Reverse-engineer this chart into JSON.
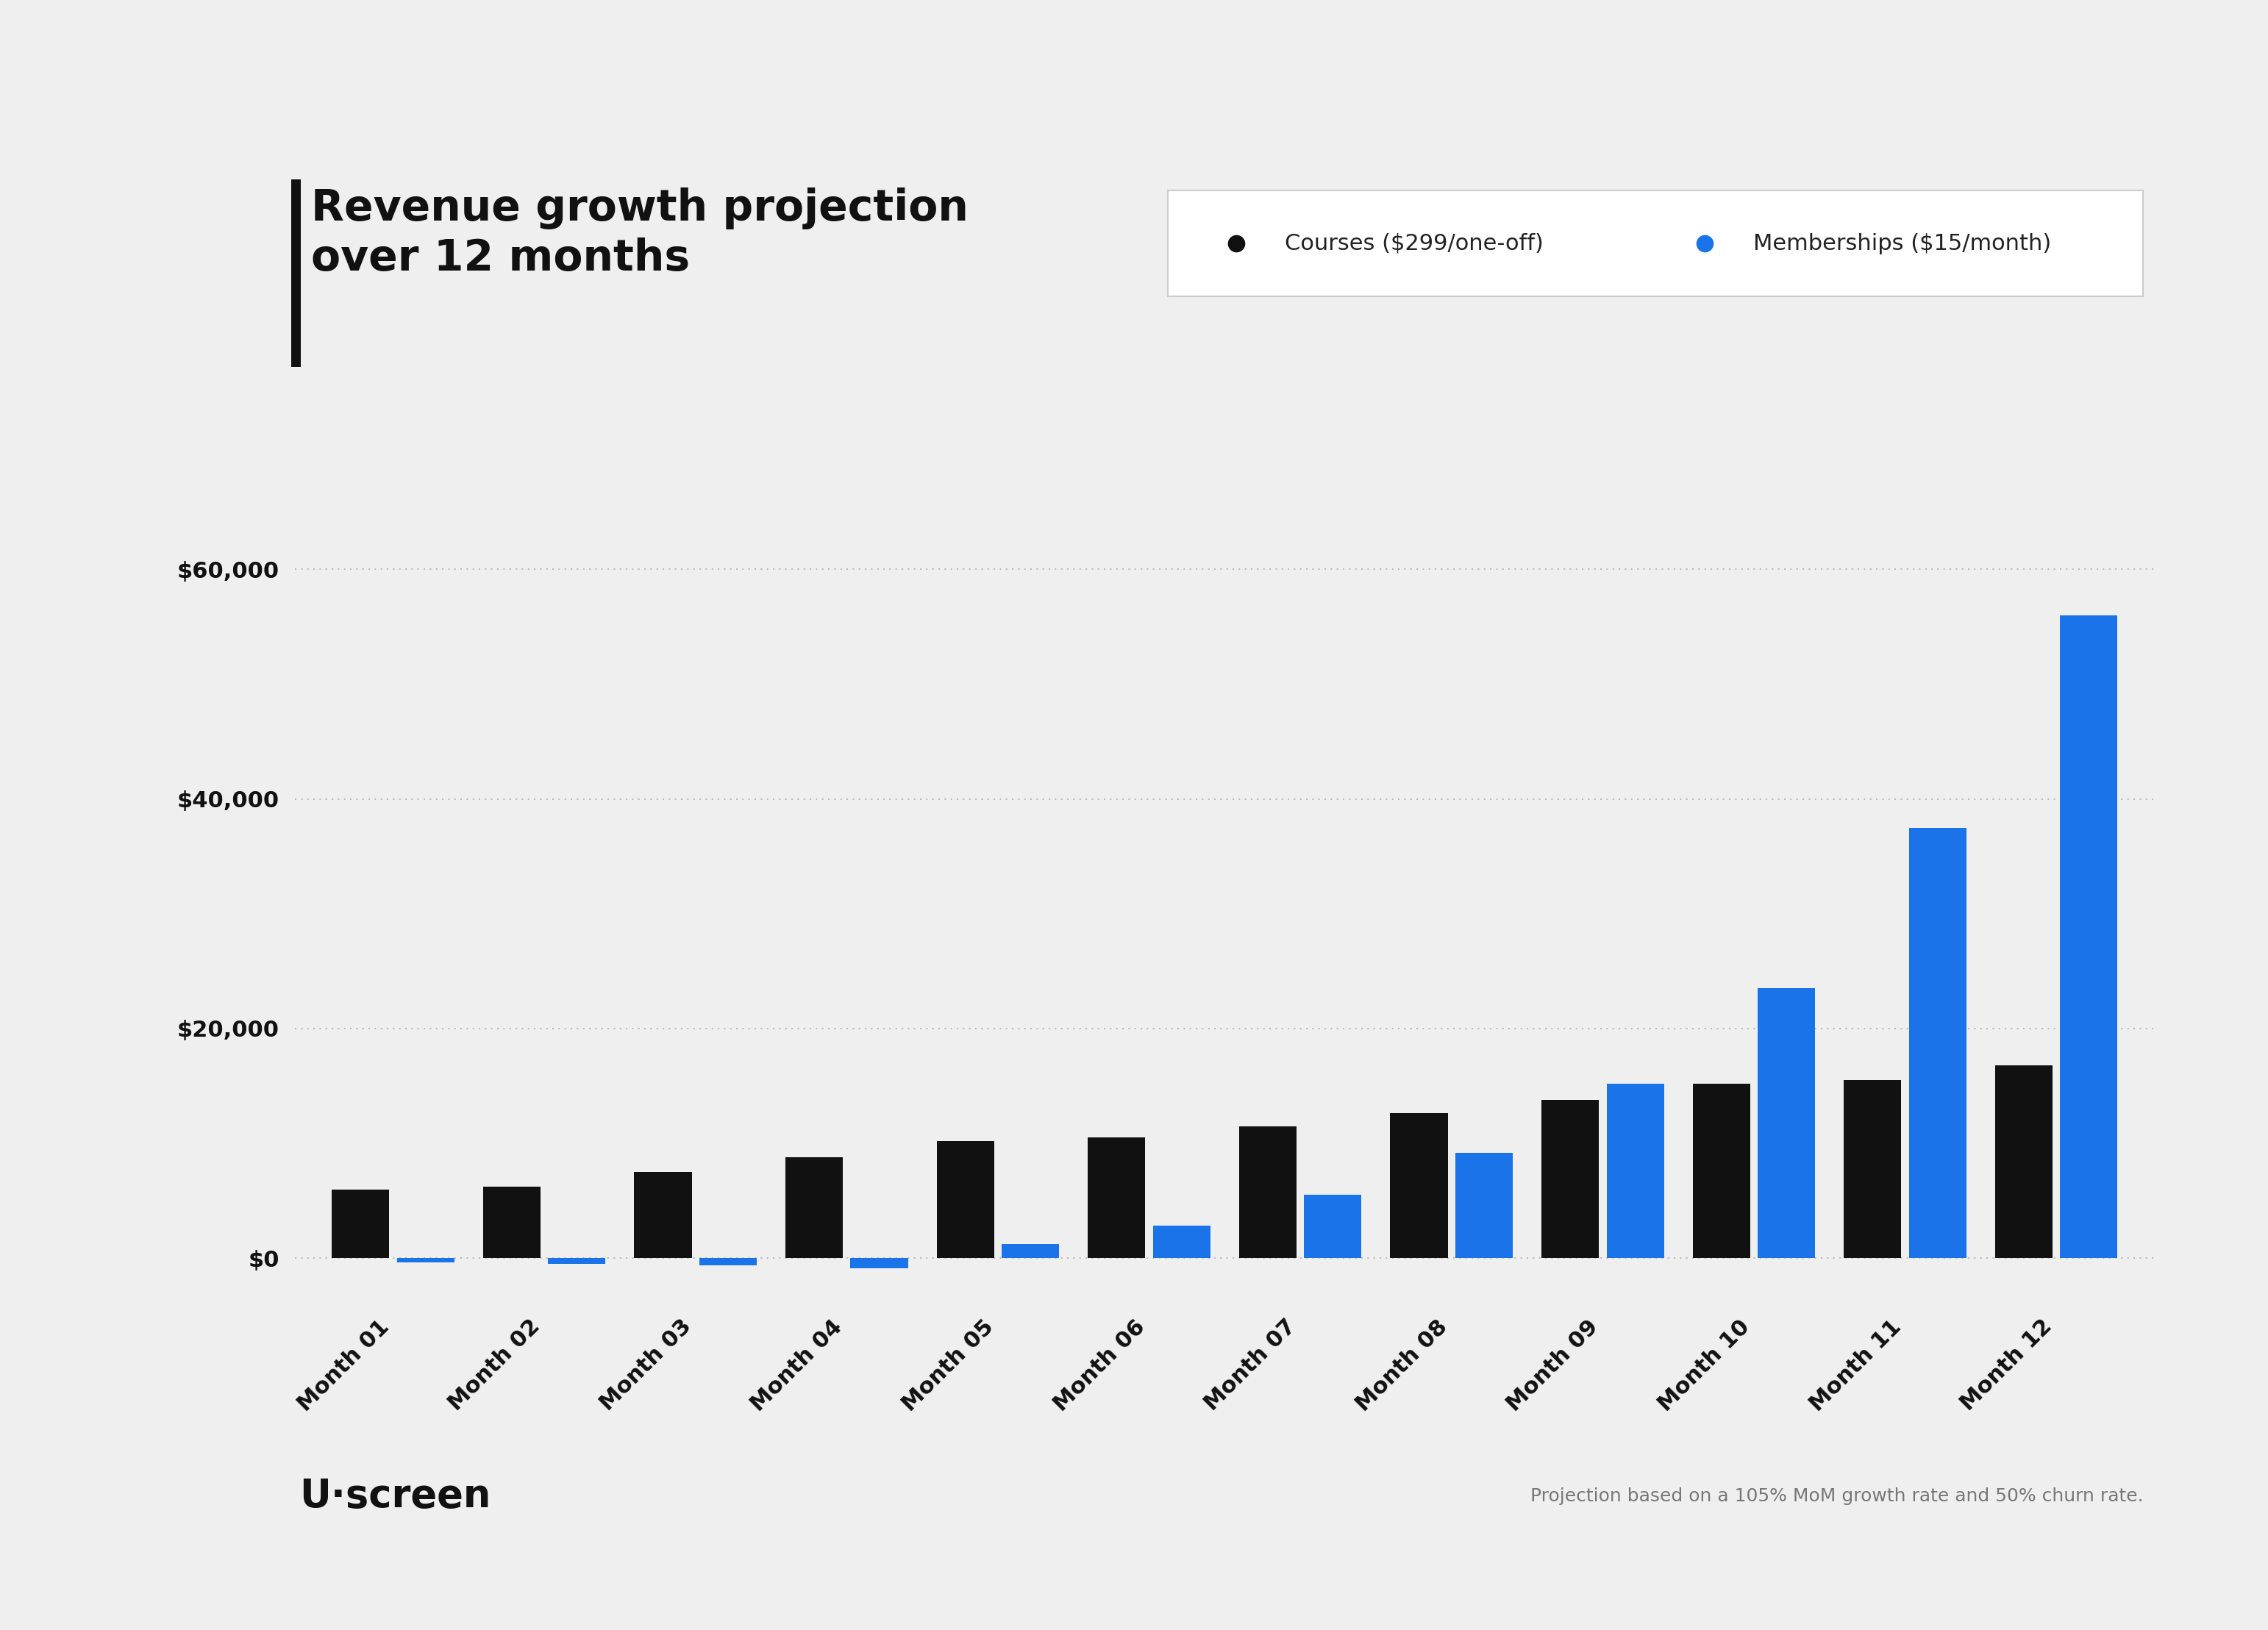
{
  "title_line1": "Revenue growth projection",
  "title_line2": "over 12 months",
  "background_color": "#EFEFEF",
  "chart_bg_color": "#EFEFEF",
  "categories": [
    "Month 01",
    "Month 02",
    "Month 03",
    "Month 04",
    "Month 05",
    "Month 06",
    "Month 07",
    "Month 08",
    "Month 09",
    "Month 10",
    "Month 11",
    "Month 12"
  ],
  "courses_values": [
    5970,
    6200,
    7500,
    8800,
    10200,
    10500,
    11500,
    12600,
    13800,
    15200,
    15500,
    16800
  ],
  "memberships_values": [
    -400,
    -500,
    -600,
    -900,
    1200,
    2800,
    5500,
    9200,
    15200,
    23500,
    37500,
    56000
  ],
  "courses_color": "#111111",
  "memberships_color": "#1A73E8",
  "legend_courses_label": "Courses ($299/one-off)",
  "legend_memberships_label": "Memberships ($15/month)",
  "yticks": [
    0,
    20000,
    40000,
    60000
  ],
  "ytick_labels": [
    "$0",
    "$20,000",
    "$40,000",
    "$60,000"
  ],
  "ymin": -4000,
  "ymax": 67000,
  "footer_text": "Projection based on a 105% MoM growth rate and 50% churn rate.",
  "uscreen_logo_text": "U·screen",
  "title_fontsize": 42,
  "axis_fontsize": 22,
  "legend_fontsize": 22,
  "footer_fontsize": 18,
  "logo_fontsize": 38,
  "dotted_line_color": "#BBBBBB",
  "accent_bar_color": "#111111",
  "legend_border_color": "#CCCCCC",
  "legend_bg_color": "#FFFFFF",
  "ytick_label_color": "#111111",
  "xtick_label_color": "#111111",
  "footer_text_color": "#777777",
  "logo_color": "#111111"
}
